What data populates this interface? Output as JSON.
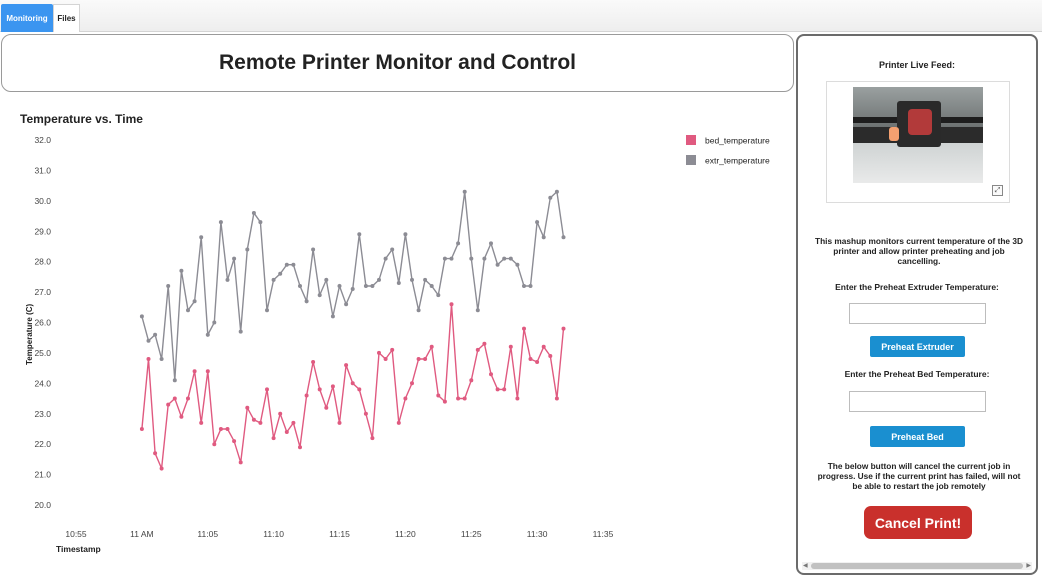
{
  "tabs": [
    {
      "label": "Monitoring",
      "active": true
    },
    {
      "label": "Files",
      "active": false
    }
  ],
  "page_title": "Remote Printer Monitor and Control",
  "chart_data": {
    "type": "line",
    "title": "Temperature vs. Time",
    "xlabel": "Timestamp",
    "ylabel": "Temperature (C)",
    "ylim": [
      20.0,
      32.0
    ],
    "yticks": [
      "32.0",
      "31.0",
      "30.0",
      "29.0",
      "28.0",
      "27.0",
      "26.0",
      "25.0",
      "24.0",
      "23.0",
      "22.0",
      "21.0",
      "20.0"
    ],
    "xlim": [
      -5,
      35
    ],
    "xticks": [
      {
        "label": "10:55",
        "minute": -5
      },
      {
        "label": "11 AM",
        "minute": 0
      },
      {
        "label": "11:05",
        "minute": 5
      },
      {
        "label": "11:10",
        "minute": 10
      },
      {
        "label": "11:15",
        "minute": 15
      },
      {
        "label": "11:20",
        "minute": 20
      },
      {
        "label": "11:25",
        "minute": 25
      },
      {
        "label": "11:30",
        "minute": 30
      },
      {
        "label": "11:35",
        "minute": 35
      }
    ],
    "x_minutes_start": 0.0,
    "x_minutes_step": 0.5,
    "legend_position": "top-right",
    "series": [
      {
        "name": "bed_temperature",
        "color": "#e05a80",
        "values": [
          22.5,
          24.8,
          21.7,
          21.2,
          23.3,
          23.5,
          22.9,
          23.5,
          24.4,
          22.7,
          24.4,
          22.0,
          22.5,
          22.5,
          22.1,
          21.4,
          23.2,
          22.8,
          22.7,
          23.8,
          22.2,
          23.0,
          22.4,
          22.7,
          21.9,
          23.6,
          24.7,
          23.8,
          23.2,
          23.9,
          22.7,
          24.6,
          24.0,
          23.8,
          23.0,
          22.2,
          25.0,
          24.8,
          25.1,
          22.7,
          23.5,
          24.0,
          24.8,
          24.8,
          25.2,
          23.6,
          23.4,
          26.6,
          23.5,
          23.5,
          24.1,
          25.1,
          25.3,
          24.3,
          23.8,
          23.8,
          25.2,
          23.5,
          25.8,
          24.8,
          24.7,
          25.2,
          24.9,
          23.5,
          25.8
        ]
      },
      {
        "name": "extr_temperature",
        "color": "#8c8c94",
        "values": [
          26.2,
          25.4,
          25.6,
          24.8,
          27.2,
          24.1,
          27.7,
          26.4,
          26.7,
          28.8,
          25.6,
          26.0,
          29.3,
          27.4,
          28.1,
          25.7,
          28.4,
          29.6,
          29.3,
          26.4,
          27.4,
          27.6,
          27.9,
          27.9,
          27.2,
          26.7,
          28.4,
          26.9,
          27.4,
          26.2,
          27.2,
          26.6,
          27.1,
          28.9,
          27.2,
          27.2,
          27.4,
          28.1,
          28.4,
          27.3,
          28.9,
          27.4,
          26.4,
          27.4,
          27.2,
          26.9,
          28.1,
          28.1,
          28.6,
          30.3,
          28.1,
          26.4,
          28.1,
          28.6,
          27.9,
          28.1,
          28.1,
          27.9,
          27.2,
          27.2,
          29.3,
          28.8,
          30.1,
          30.3,
          28.8
        ]
      }
    ]
  },
  "right_panel": {
    "feed_label": "Printer Live Feed:",
    "description": "This mashup monitors current temperature of the 3D printer and allow printer preheating and job cancelling.",
    "extruder_label": "Enter the Preheat Extruder Temperature:",
    "extruder_value": "",
    "extruder_button": "Preheat Extruder",
    "bed_label": "Enter the Preheat Bed Temperature:",
    "bed_value": "",
    "bed_button": "Preheat Bed",
    "cancel_note": "The below button will cancel the current job in progress. Use if the current print has failed, will not be able to restart the job remotely",
    "cancel_button": "Cancel Print!"
  },
  "icons": {
    "expand": "expand-icon",
    "scroll_left": "scroll-left-arrow-icon",
    "scroll_right": "scroll-right-arrow-icon"
  }
}
